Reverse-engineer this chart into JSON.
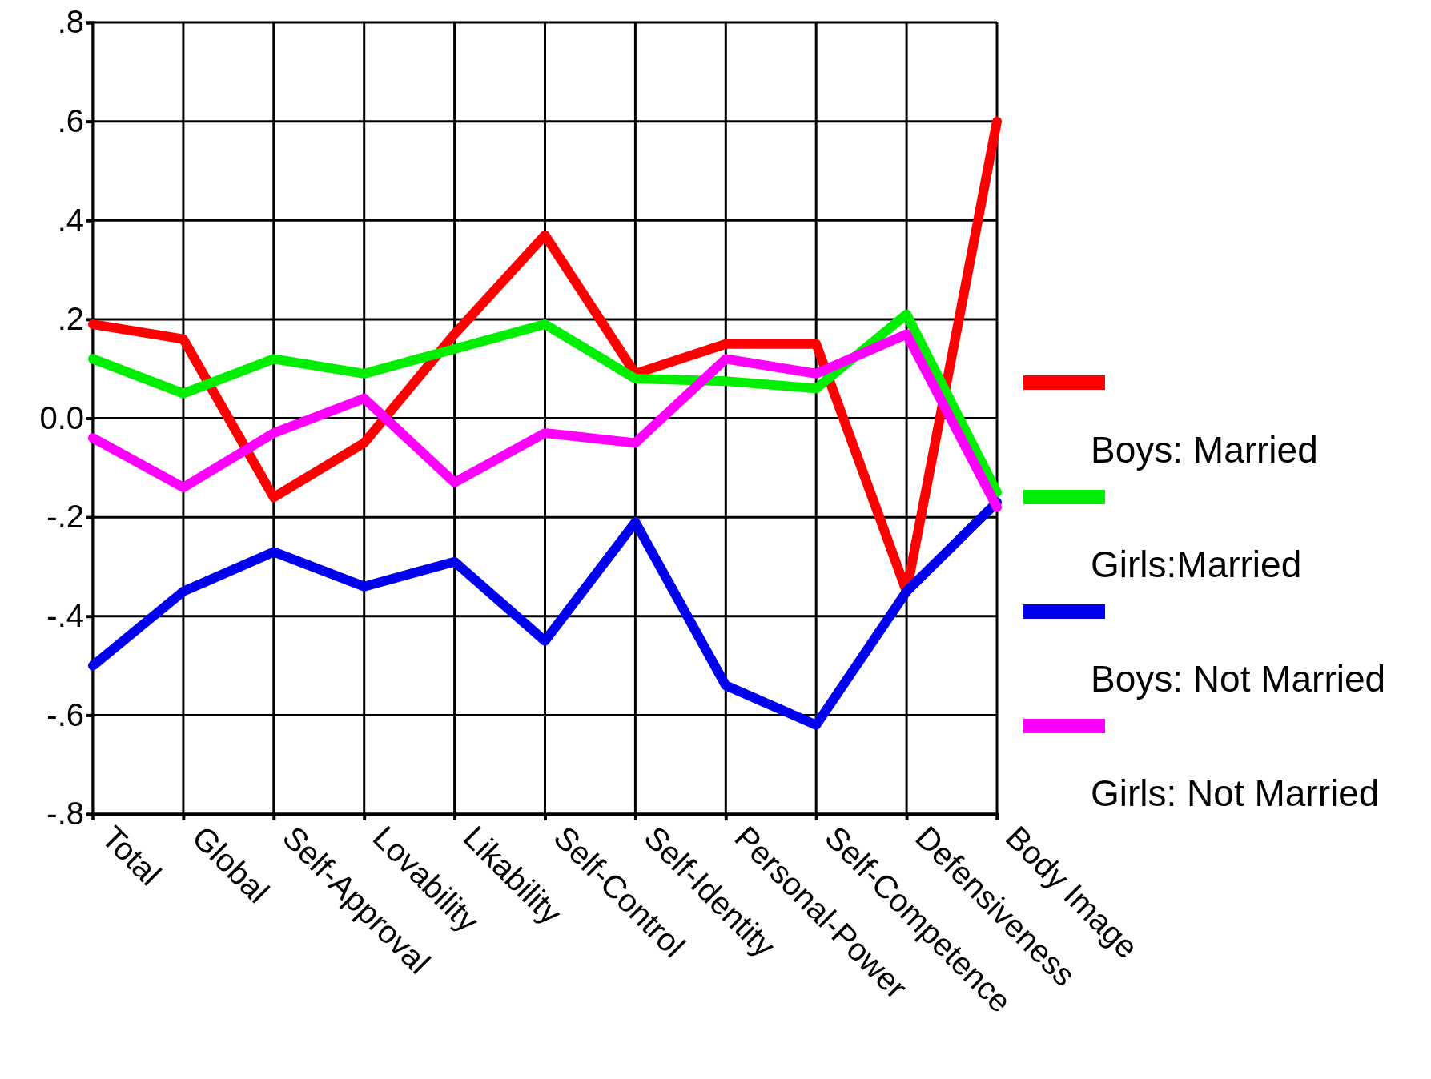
{
  "chart_data": {
    "type": "line",
    "categories": [
      "Total",
      "Global",
      "Self-Approval",
      "Lovability",
      "Likability",
      "Self-Control",
      "Self-Identity",
      "Personal-Power",
      "Self-Competence",
      "Defensiveness",
      "Body Image"
    ],
    "ylim": [
      -0.8,
      0.8
    ],
    "yticks": [
      {
        "value": -0.8,
        "label": "-.8"
      },
      {
        "value": -0.6,
        "label": "-.6"
      },
      {
        "value": -0.4,
        "label": "-.4"
      },
      {
        "value": -0.2,
        "label": "-.2"
      },
      {
        "value": 0,
        "label": "0.0"
      },
      {
        "value": 0.2,
        "label": ".2"
      },
      {
        "value": 0.4,
        "label": ".4"
      },
      {
        "value": 0.6,
        "label": ".6"
      },
      {
        "value": 0.8,
        "label": ".8"
      }
    ],
    "grid": true,
    "legend": "right",
    "marker": "none",
    "line_style": "solid",
    "series": [
      {
        "name": "Boys: Married",
        "color": "#ff0000",
        "values": [
          0.19,
          0.16,
          -0.16,
          -0.05,
          0.17,
          0.37,
          0.09,
          0.15,
          0.15,
          -0.35,
          0.6
        ]
      },
      {
        "name": "Girls:Married",
        "color": "#00ee00",
        "values": [
          0.12,
          0.05,
          0.12,
          0.09,
          0.14,
          0.19,
          0.08,
          0.075,
          0.06,
          0.21,
          -0.15
        ]
      },
      {
        "name": "Boys: Not Married",
        "color": "#0000ee",
        "values": [
          -0.5,
          -0.35,
          -0.27,
          -0.34,
          -0.29,
          -0.45,
          -0.21,
          -0.54,
          -0.62,
          -0.35,
          -0.17
        ]
      },
      {
        "name": "Girls: Not Married",
        "color": "#ff00ff",
        "values": [
          -0.04,
          -0.14,
          -0.03,
          0.04,
          -0.13,
          -0.03,
          -0.05,
          0.12,
          0.09,
          0.17,
          -0.18
        ]
      }
    ]
  }
}
